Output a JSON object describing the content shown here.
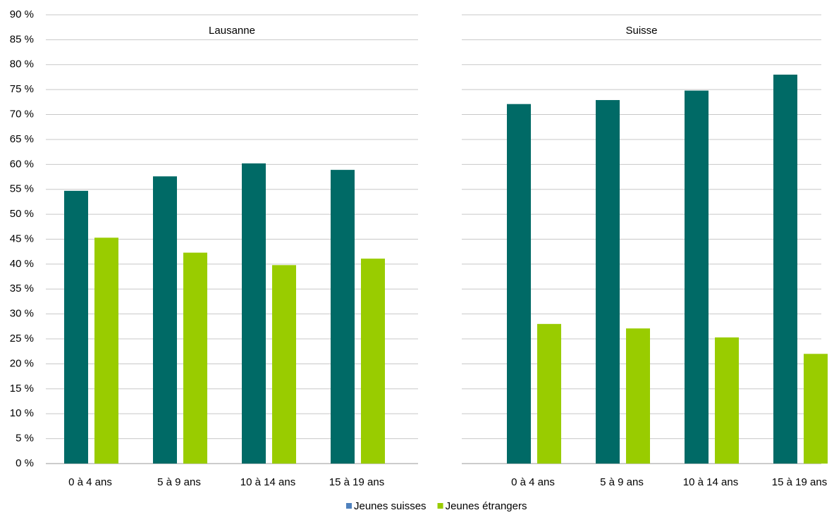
{
  "chart_data": [
    {
      "type": "bar",
      "title": "Lausanne",
      "categories": [
        "0 à 4 ans",
        "5 à 9 ans",
        "10 à 14 ans",
        "15 à 19 ans"
      ],
      "series": [
        {
          "name": "Jeunes suisses",
          "color": "#006a66",
          "legend_color": "#4f81bd",
          "values": [
            54.7,
            57.6,
            60.2,
            58.9
          ]
        },
        {
          "name": "Jeunes étrangers",
          "color": "#99cc00",
          "legend_color": "#99cc00",
          "values": [
            45.3,
            42.3,
            39.8,
            41.1
          ]
        }
      ],
      "ylim": [
        0,
        90
      ],
      "yticks": [
        {
          "value": 0,
          "label": "0 %"
        },
        {
          "value": 5,
          "label": "5 %"
        },
        {
          "value": 10,
          "label": "10 %"
        },
        {
          "value": 15,
          "label": "15 %"
        },
        {
          "value": 20,
          "label": "20 %"
        },
        {
          "value": 25,
          "label": "25 %"
        },
        {
          "value": 30,
          "label": "30 %"
        },
        {
          "value": 35,
          "label": "35 %"
        },
        {
          "value": 40,
          "label": "40 %"
        },
        {
          "value": 45,
          "label": "45 %"
        },
        {
          "value": 50,
          "label": "50 %"
        },
        {
          "value": 55,
          "label": "55 %"
        },
        {
          "value": 60,
          "label": "60 %"
        },
        {
          "value": 65,
          "label": "65 %"
        },
        {
          "value": 70,
          "label": "70 %"
        },
        {
          "value": 75,
          "label": "75 %"
        },
        {
          "value": 80,
          "label": "80 %"
        },
        {
          "value": 85,
          "label": "85 %"
        },
        {
          "value": 90,
          "label": "90 %"
        }
      ],
      "grid": true,
      "legend": "bottom"
    },
    {
      "type": "bar",
      "title": "Suisse",
      "categories": [
        "0 à 4 ans",
        "5 à 9 ans",
        "10 à 14 ans",
        "15 à 19 ans"
      ],
      "series": [
        {
          "color": "#006a66",
          "values": [
            72.1,
            72.9,
            74.8,
            78.0
          ]
        },
        {
          "color": "#99cc00",
          "values": [
            28.0,
            27.1,
            25.3,
            22.0
          ]
        }
      ],
      "ylim": [
        0,
        90
      ],
      "yticks": [
        0,
        5,
        10,
        15,
        20,
        25,
        30,
        35,
        40,
        45,
        50,
        55,
        60,
        65,
        70,
        75,
        80,
        85,
        90
      ],
      "grid": true
    }
  ]
}
